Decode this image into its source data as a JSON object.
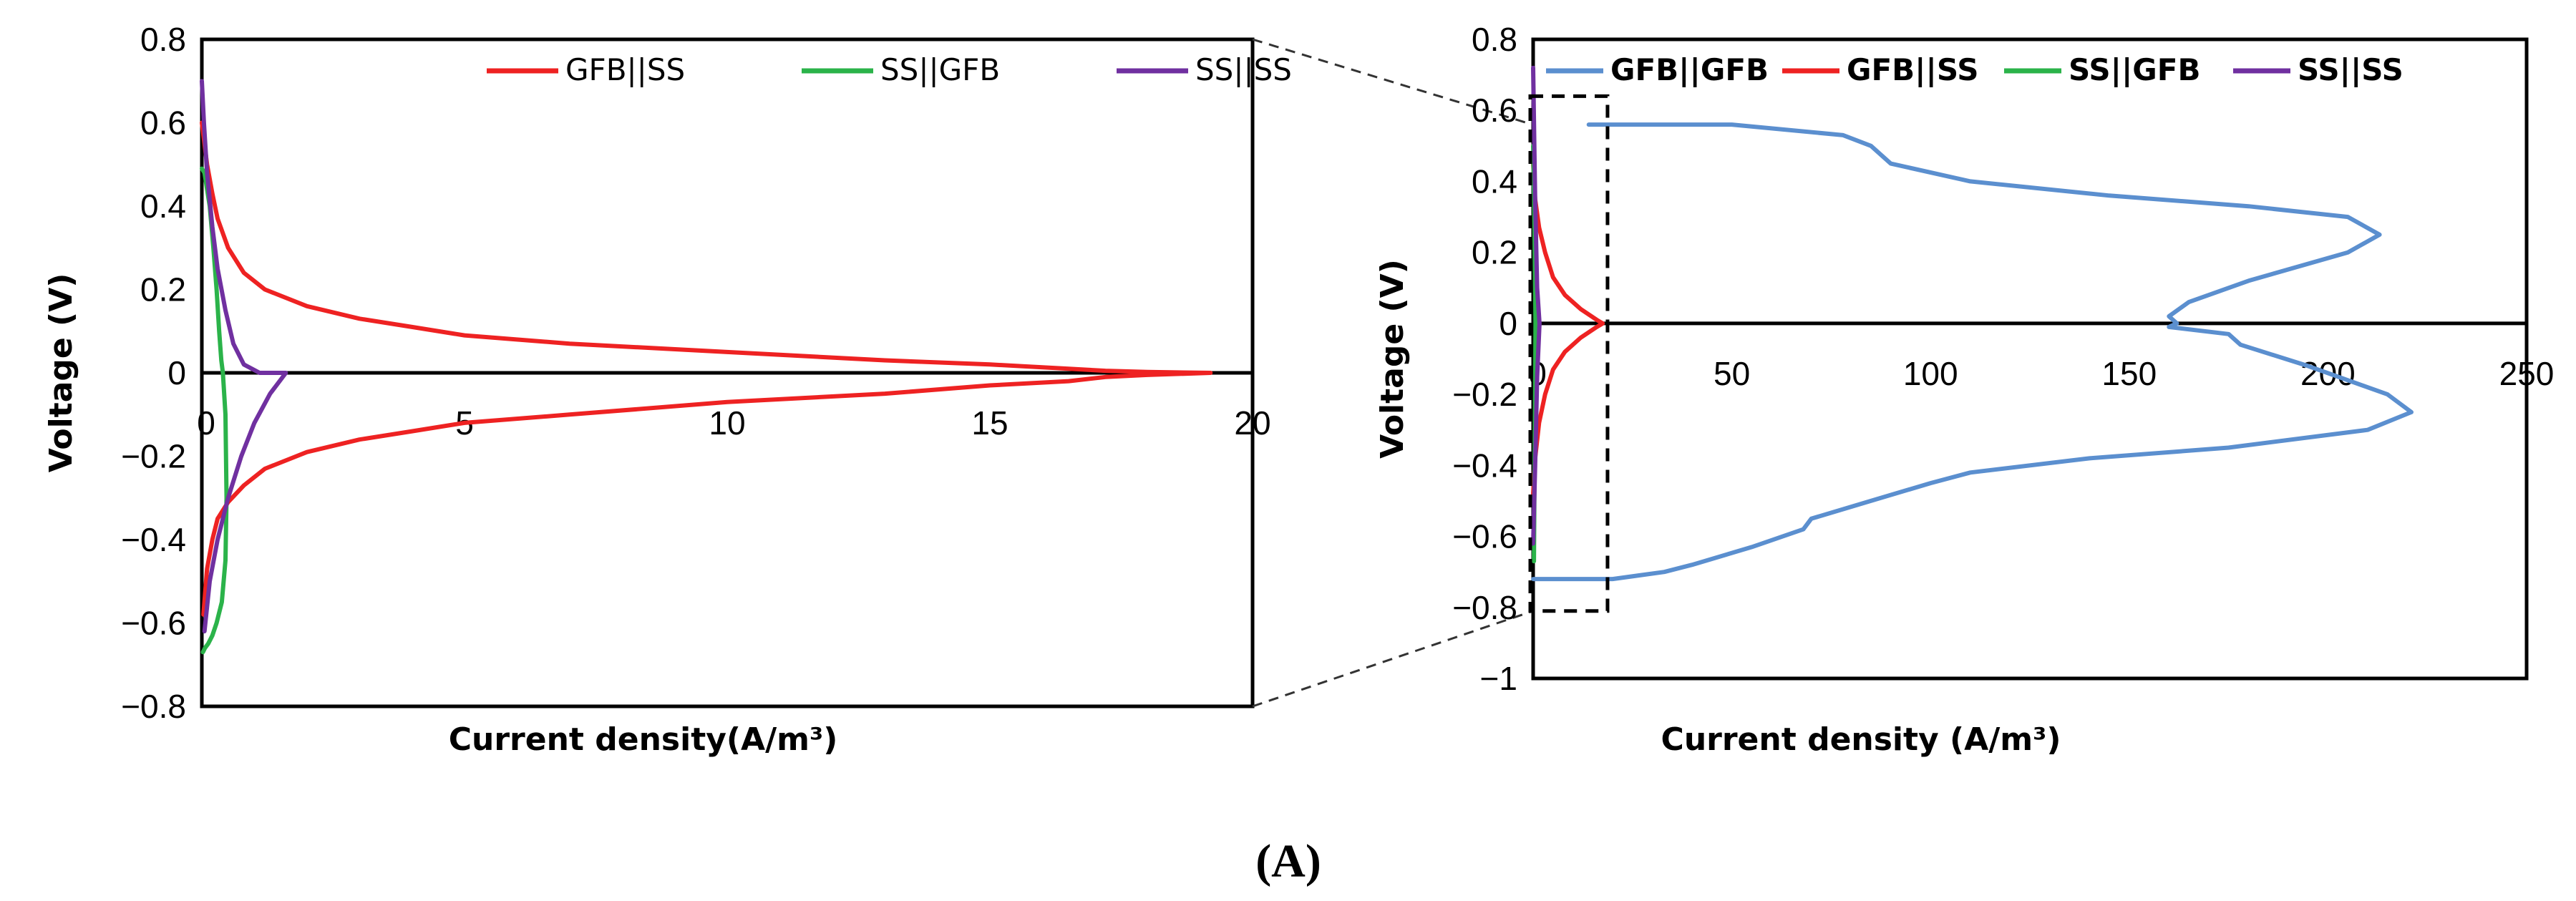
{
  "figure": {
    "caption": "(A)"
  },
  "chart_data": [
    {
      "type": "line",
      "title": "",
      "xlabel": "Current density(A/m³)",
      "ylabel": "Voltage (V)",
      "xlim": [
        0,
        20
      ],
      "ylim": [
        -0.8,
        0.8
      ],
      "x_ticks": [
        0,
        5,
        10,
        15,
        20
      ],
      "x_tick_labels": [
        "0",
        "5",
        "10",
        "15",
        "20"
      ],
      "y_ticks": [
        0.8,
        0.6,
        0.4,
        0.2,
        0,
        -0.2,
        -0.4,
        -0.6,
        -0.8
      ],
      "y_tick_labels": [
        "0.8",
        "0.6",
        "0.4",
        "0.2",
        "0",
        "−0.2",
        "−0.4",
        "−0.6",
        "−0.8"
      ],
      "legend_position": "top",
      "series": [
        {
          "name": "GFB||SS",
          "color": "#ee2222",
          "x": [
            0,
            0.1,
            0.2,
            0.3,
            0.5,
            0.8,
            1.2,
            2,
            3,
            4,
            5,
            7,
            10,
            13,
            15,
            16.5,
            17.2,
            18,
            19.2,
            18,
            17.2,
            16.5,
            15,
            13,
            10,
            7,
            5,
            4,
            3,
            2,
            1.2,
            0.8,
            0.5,
            0.3,
            0.2,
            0.1,
            0.03
          ],
          "y": [
            0.6,
            0.5,
            0.43,
            0.37,
            0.3,
            0.24,
            0.2,
            0.16,
            0.13,
            0.11,
            0.09,
            0.07,
            0.05,
            0.03,
            0.02,
            0.01,
            0.005,
            0.002,
            0,
            -0.005,
            -0.01,
            -0.02,
            -0.03,
            -0.05,
            -0.07,
            -0.1,
            -0.12,
            -0.14,
            -0.16,
            -0.19,
            -0.23,
            -0.27,
            -0.31,
            -0.35,
            -0.4,
            -0.47,
            -0.58
          ]
        },
        {
          "name": "SS||GFB",
          "color": "#2bb34a",
          "x": [
            0,
            0.05,
            0.15,
            0.22,
            0.28,
            0.33,
            0.37,
            0.4,
            0.45,
            0.47,
            0.45,
            0.38,
            0.28,
            0.2,
            0.12,
            0.06,
            0.02
          ],
          "y": [
            0.49,
            0.48,
            0.4,
            0.3,
            0.2,
            0.1,
            0.03,
            0,
            -0.1,
            -0.3,
            -0.45,
            -0.55,
            -0.6,
            -0.63,
            -0.65,
            -0.66,
            -0.67
          ]
        },
        {
          "name": "SS||SS",
          "color": "#7030a0",
          "x": [
            0,
            0.04,
            0.1,
            0.2,
            0.3,
            0.45,
            0.6,
            0.8,
            1.1,
            1.6,
            1.3,
            1.0,
            0.75,
            0.5,
            0.3,
            0.15,
            0.05
          ],
          "y": [
            0.7,
            0.6,
            0.48,
            0.35,
            0.25,
            0.15,
            0.07,
            0.02,
            0,
            0,
            -0.05,
            -0.12,
            -0.2,
            -0.3,
            -0.4,
            -0.5,
            -0.62
          ]
        }
      ]
    },
    {
      "type": "line",
      "title": "",
      "xlabel": "Current density (A/m³)",
      "ylabel": "Voltage (V)",
      "xlim": [
        0,
        250
      ],
      "ylim": [
        -1,
        0.8
      ],
      "x_ticks": [
        0,
        50,
        100,
        150,
        200,
        250
      ],
      "x_tick_labels": [
        "0",
        "50",
        "100",
        "150",
        "200",
        "250"
      ],
      "y_ticks": [
        0.8,
        0.6,
        0.4,
        0.2,
        0,
        -0.2,
        -0.4,
        -0.6,
        -0.8,
        -1
      ],
      "y_tick_labels": [
        "0.8",
        "0.6",
        "0.4",
        "0.2",
        "0",
        "−0.2",
        "−0.4",
        "−0.6",
        "−0.8",
        "−1"
      ],
      "legend_position": "top",
      "zoom_box": {
        "x": [
          0,
          18
        ],
        "y": [
          -0.81,
          0.64
        ]
      },
      "series": [
        {
          "name": "GFB||GFB",
          "color": "#5b8fcf",
          "x": [
            14,
            50,
            78,
            85,
            90,
            110,
            145,
            180,
            205,
            213,
            205,
            180,
            165,
            160,
            162,
            160,
            175,
            178,
            195,
            215,
            221,
            210,
            175,
            140,
            110,
            100,
            85,
            70,
            68,
            55,
            40,
            33,
            20,
            0
          ],
          "y": [
            0.56,
            0.56,
            0.53,
            0.5,
            0.45,
            0.4,
            0.36,
            0.33,
            0.3,
            0.25,
            0.2,
            0.12,
            0.06,
            0.02,
            0,
            -0.01,
            -0.03,
            -0.06,
            -0.12,
            -0.2,
            -0.25,
            -0.3,
            -0.35,
            -0.38,
            -0.42,
            -0.45,
            -0.5,
            -0.55,
            -0.58,
            -0.63,
            -0.68,
            -0.7,
            -0.72,
            -0.72
          ]
        },
        {
          "name": "GFB||SS",
          "color": "#ee2222",
          "x": [
            0,
            0.5,
            1.5,
            3,
            5,
            8,
            12,
            16,
            17.5,
            16,
            12,
            8,
            5,
            3,
            1.5,
            0.5,
            0
          ],
          "y": [
            0.45,
            0.35,
            0.27,
            0.2,
            0.13,
            0.08,
            0.04,
            0.01,
            0,
            -0.01,
            -0.04,
            -0.08,
            -0.13,
            -0.2,
            -0.28,
            -0.38,
            -0.48
          ]
        },
        {
          "name": "SS||GFB",
          "color": "#2bb34a",
          "x": [
            0,
            0.3,
            0.5,
            0.6,
            0.5,
            0.3,
            0.2
          ],
          "y": [
            0.5,
            0.3,
            0.1,
            0,
            -0.2,
            -0.5,
            -0.67
          ]
        },
        {
          "name": "SS||SS",
          "color": "#7030a0",
          "x": [
            0,
            0.5,
            1.0,
            1.6,
            1.0,
            0.5,
            0
          ],
          "y": [
            0.72,
            0.35,
            0.1,
            0,
            -0.15,
            -0.4,
            -0.62
          ]
        }
      ]
    }
  ]
}
